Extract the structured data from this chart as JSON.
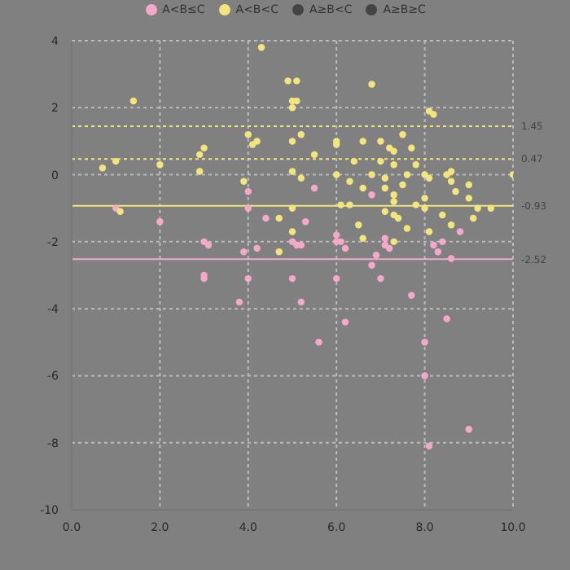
{
  "chart_data": {
    "type": "scatter",
    "legend": "top",
    "grid": true,
    "marker": "circle",
    "xlim": [
      0,
      10
    ],
    "xticks": [
      {
        "value": 0,
        "label": "0.0"
      },
      {
        "value": 2,
        "label": "2.0"
      },
      {
        "value": 4,
        "label": "4.0"
      },
      {
        "value": 6,
        "label": "6.0"
      },
      {
        "value": 8,
        "label": "8.0"
      },
      {
        "value": 10,
        "label": "10.0"
      }
    ],
    "ylim": [
      -10,
      4
    ],
    "yticks": [
      -10,
      -8,
      -6,
      -4,
      -2,
      0,
      2,
      4
    ],
    "series": [
      {
        "name": "A<B≤C",
        "color": "#f4a9cb",
        "x": [
          4.0,
          5.5,
          6.8,
          1.0,
          2.0,
          4.0,
          4.4,
          5.3,
          6.0,
          6.1,
          6.2,
          6.0,
          5.0,
          5.1,
          5.2,
          7.1,
          7.2,
          7.1,
          3.0,
          3.1,
          3.9,
          4.2,
          8.2,
          8.4,
          8.3,
          8.8,
          6.9,
          6.8,
          8.6,
          3.0,
          3.0,
          4.0,
          5.0,
          6.0,
          7.0,
          7.7,
          3.8,
          5.2,
          6.2,
          8.5,
          5.6,
          8.0,
          8.0,
          9.0,
          8.1
        ],
        "values": [
          -0.5,
          -0.4,
          -0.6,
          -1.0,
          -1.4,
          -1.0,
          -1.3,
          -1.4,
          -1.8,
          -2.0,
          -2.2,
          -2.0,
          -2.0,
          -2.1,
          -2.1,
          -1.9,
          -2.2,
          -2.1,
          -2.0,
          -2.1,
          -2.3,
          -2.2,
          -2.1,
          -2.0,
          -2.3,
          -1.7,
          -2.4,
          -2.7,
          -2.5,
          -3.0,
          -3.1,
          -3.1,
          -3.1,
          -3.1,
          -3.1,
          -3.6,
          -3.8,
          -3.8,
          -4.4,
          -4.3,
          -5.0,
          -5.0,
          -6.0,
          -7.6,
          -8.1
        ]
      },
      {
        "name": "A<B<C",
        "color": "#f3e57e",
        "x": [
          4.3,
          4.9,
          5.1,
          6.8,
          1.4,
          5.0,
          5.1,
          5.0,
          8.1,
          8.2,
          4.0,
          5.2,
          7.5,
          4.2,
          4.1,
          5.0,
          6.0,
          6.0,
          6.6,
          7.0,
          7.2,
          7.3,
          7.7,
          3.0,
          2.9,
          5.5,
          1.0,
          6.4,
          7.0,
          2.0,
          7.3,
          7.8,
          0.7,
          2.9,
          5.0,
          6.0,
          6.8,
          7.6,
          8.0,
          8.1,
          8.5,
          8.6,
          10.0,
          3.9,
          5.2,
          6.3,
          7.1,
          8.6,
          9.0,
          6.6,
          7.5,
          8.7,
          7.1,
          9.0,
          7.3,
          7.3,
          1.1,
          5.0,
          6.1,
          6.3,
          7.1,
          7.3,
          7.4,
          7.8,
          8.0,
          8.0,
          8.4,
          9.2,
          9.5,
          9.1,
          8.6,
          6.5,
          7.6,
          8.1,
          4.7,
          5.0,
          6.6,
          7.3,
          4.7
        ],
        "values": [
          3.8,
          2.8,
          2.8,
          2.7,
          2.2,
          2.2,
          2.2,
          2.0,
          1.9,
          1.8,
          1.2,
          1.2,
          1.2,
          1.0,
          0.9,
          1.0,
          1.0,
          0.9,
          1.0,
          1.0,
          0.8,
          0.7,
          0.8,
          0.8,
          0.6,
          0.6,
          0.4,
          0.4,
          0.4,
          0.3,
          0.3,
          0.3,
          0.2,
          0.1,
          0.1,
          0.0,
          0.0,
          0.0,
          0.0,
          -0.1,
          0.0,
          0.1,
          0.0,
          -0.2,
          -0.1,
          -0.2,
          -0.1,
          -0.2,
          -0.3,
          -0.4,
          -0.3,
          -0.5,
          -0.4,
          -0.7,
          -0.6,
          -0.8,
          -1.1,
          -1.0,
          -0.9,
          -0.9,
          -1.1,
          -1.2,
          -1.3,
          -0.9,
          -0.7,
          -1.0,
          -1.2,
          -1.0,
          -1.0,
          -1.3,
          -1.5,
          -1.5,
          -1.6,
          -1.7,
          -1.3,
          -1.7,
          -1.9,
          -2.0,
          -2.3
        ]
      },
      {
        "name": "A≥B<C",
        "color": "#444444"
      },
      {
        "name": "A≥B≥C",
        "color": "#444444"
      }
    ],
    "ref_lines": [
      {
        "axis": "y",
        "value": 1.45,
        "label": "1.45",
        "color": "#f3e57e",
        "line_style": "dotted"
      },
      {
        "axis": "y",
        "value": 0.47,
        "label": "0.47",
        "color": "#f3e57e",
        "line_style": "dotted"
      },
      {
        "axis": "y",
        "value": -0.93,
        "label": "-0.93",
        "color": "#f3e57e",
        "line_style": "solid"
      },
      {
        "axis": "y",
        "value": -2.52,
        "label": "-2.52",
        "color": "#f4a9cb",
        "line_style": "solid"
      }
    ]
  }
}
